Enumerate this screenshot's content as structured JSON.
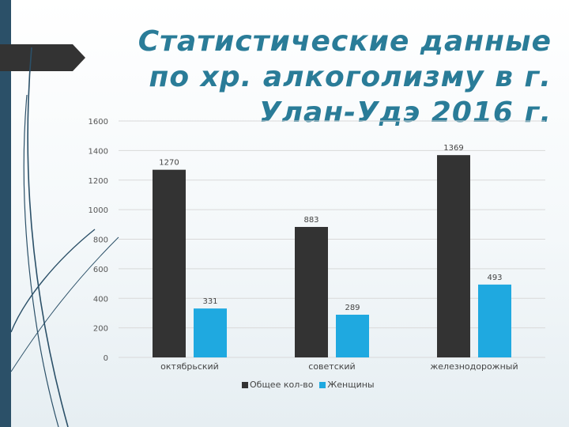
{
  "slide": {
    "title_lines": [
      "Статистические данные",
      "по хр. алкоголизму в г.",
      "Улан-Удэ 2016 г."
    ]
  },
  "theme": {
    "accent": "#2a7c98",
    "sidebar": "#2b5068",
    "tab": "#333333"
  },
  "chart_data": {
    "type": "bar",
    "categories": [
      "октябрьский",
      "советский",
      "железнодорожный"
    ],
    "series": [
      {
        "name": "Общее кол-во",
        "values": [
          1270,
          883,
          1369
        ],
        "color": "#333333"
      },
      {
        "name": "Женщины",
        "values": [
          331,
          289,
          493
        ],
        "color": "#1fa9e0"
      }
    ],
    "ylim": [
      0,
      1600
    ],
    "yticks": [
      0,
      200,
      400,
      600,
      800,
      1000,
      1200,
      1400,
      1600
    ],
    "grid": true,
    "legend": "bottom"
  }
}
